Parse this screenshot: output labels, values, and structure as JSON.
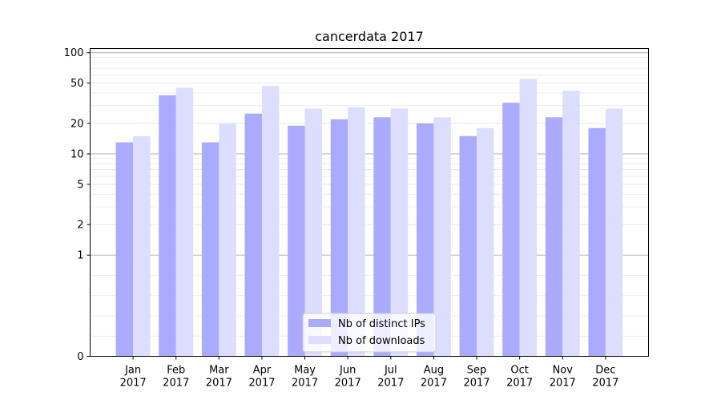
{
  "chart_data": {
    "type": "bar",
    "title": "cancerdata 2017",
    "xlabel": "",
    "ylabel": "",
    "yscale": "symlog",
    "ylim": [
      0,
      110
    ],
    "yticks": [
      0,
      1,
      2,
      5,
      10,
      20,
      50,
      100
    ],
    "ytick_labels": [
      "0",
      "1",
      "2",
      "5",
      "10",
      "20",
      "50",
      "100"
    ],
    "grid": "y",
    "legend_position": "bottom-center",
    "categories": [
      [
        "Jan",
        "2017"
      ],
      [
        "Feb",
        "2017"
      ],
      [
        "Mar",
        "2017"
      ],
      [
        "Apr",
        "2017"
      ],
      [
        "May",
        "2017"
      ],
      [
        "Jun",
        "2017"
      ],
      [
        "Jul",
        "2017"
      ],
      [
        "Aug",
        "2017"
      ],
      [
        "Sep",
        "2017"
      ],
      [
        "Oct",
        "2017"
      ],
      [
        "Nov",
        "2017"
      ],
      [
        "Dec",
        "2017"
      ]
    ],
    "series": [
      {
        "name": "Nb of distinct IPs",
        "color": "#aaaaff",
        "values": [
          13,
          38,
          13,
          25,
          19,
          22,
          23,
          20,
          15,
          32,
          23,
          18
        ]
      },
      {
        "name": "Nb of downloads",
        "color": "#ddddff",
        "values": [
          15,
          45,
          20,
          47,
          28,
          29,
          28,
          23,
          18,
          55,
          42,
          28
        ]
      }
    ]
  }
}
